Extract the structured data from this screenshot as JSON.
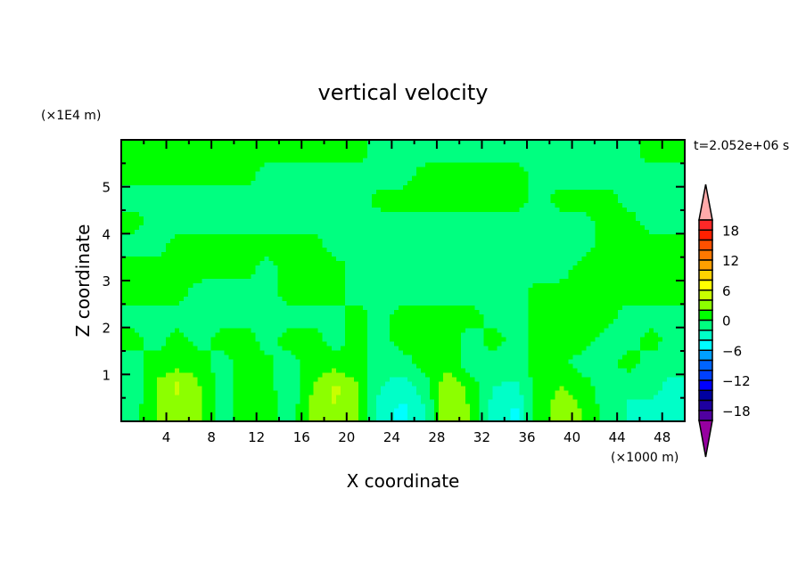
{
  "chart_data": {
    "type": "heatmap",
    "subtype": "filled-contour",
    "title": "vertical velocity",
    "xlabel": "X coordinate",
    "ylabel": "Z coordinate",
    "x_unit": "(×1000 m)",
    "y_unit": "(×1E4 m)",
    "time_label": "t=2.052e+06 s",
    "xlim": [
      0,
      50
    ],
    "ylim": [
      0,
      6
    ],
    "x_ticks": [
      4,
      8,
      12,
      16,
      20,
      24,
      28,
      32,
      36,
      40,
      44,
      48
    ],
    "x_minor_step": 2,
    "y_ticks": [
      1,
      2,
      3,
      4,
      5
    ],
    "y_minor_step": 0.5,
    "grid": false,
    "x": [
      1,
      3,
      5,
      7,
      9,
      11,
      13,
      15,
      17,
      19,
      21,
      23,
      25,
      27,
      29,
      31,
      33,
      35,
      37,
      39,
      41,
      43,
      45,
      47,
      49
    ],
    "z": [
      0.25,
      0.75,
      1.25,
      1.75,
      2.25,
      2.75,
      3.25,
      3.75,
      4.25,
      4.75,
      5.25,
      5.75
    ],
    "values": [
      [
        -1,
        2,
        3,
        2,
        -1,
        1,
        1,
        -1,
        3,
        4,
        2,
        -3,
        -4.5,
        -2,
        4,
        2,
        -3,
        -4.5,
        1,
        3,
        2,
        -1,
        -2,
        -3,
        -3
      ],
      [
        -2,
        2,
        4.5,
        2,
        -1,
        1,
        1,
        -2,
        2,
        4.5,
        2,
        -2,
        -3,
        -1,
        4,
        1,
        -2,
        -2.5,
        1,
        2,
        1,
        -1,
        -2,
        -1,
        -3
      ],
      [
        -1,
        1,
        1,
        1,
        -1,
        1,
        0.5,
        -1,
        1,
        1,
        0.5,
        -1,
        -1,
        1,
        1,
        -1,
        -1,
        -1,
        1,
        0.5,
        -1,
        -1,
        1,
        -1,
        -1
      ],
      [
        1,
        -1,
        1,
        -1,
        1,
        1,
        -1,
        1,
        1,
        -1,
        1,
        -1,
        1,
        1,
        1,
        -1,
        1,
        -1,
        1,
        1,
        1,
        -1,
        -1,
        1,
        -1
      ],
      [
        -1,
        -1,
        -1,
        -1,
        -1,
        -1,
        -1,
        -1,
        -1,
        -1,
        1,
        -1,
        1,
        1,
        1,
        1,
        -1,
        -1,
        1,
        1,
        1,
        1,
        -1,
        -1,
        -1
      ],
      [
        1,
        1,
        1,
        -1,
        -1,
        -1,
        -1,
        1,
        1,
        1,
        -1,
        -1,
        -1,
        -1,
        -1,
        -1,
        -1,
        -1,
        1,
        1,
        1,
        1,
        1,
        1,
        1
      ],
      [
        1,
        1,
        1,
        1,
        1,
        1,
        -1,
        1,
        1,
        1,
        -1,
        -1,
        -1,
        -1,
        -1,
        -1,
        -1,
        -1,
        -1,
        -1,
        1,
        1,
        1,
        1,
        1
      ],
      [
        -1,
        -1,
        1,
        1,
        1,
        1,
        1,
        1,
        1,
        -1,
        -1,
        -1,
        -1,
        -1,
        -1,
        -1,
        -1,
        -1,
        -1,
        -1,
        -1,
        1,
        1,
        1,
        1
      ],
      [
        1,
        -1,
        -1,
        -1,
        -1,
        -1,
        -1,
        -1,
        -1,
        -1,
        -1,
        -1,
        -1,
        -1,
        -1,
        -1,
        -1,
        -1,
        -1,
        -1,
        -1,
        1,
        1,
        -1,
        -1
      ],
      [
        -1,
        -1,
        -1,
        -1,
        -1,
        -1,
        -1,
        -1,
        -1,
        -1,
        -1,
        1,
        1,
        1,
        1,
        1,
        1,
        1,
        -1,
        1,
        1,
        1,
        -1,
        -1,
        -1
      ],
      [
        1,
        1,
        1,
        1,
        1,
        1,
        -1,
        -1,
        -1,
        -1,
        -1,
        -1,
        -1,
        1,
        1,
        1,
        1,
        1,
        -1,
        -1,
        -1,
        -1,
        -1,
        -1,
        -1
      ],
      [
        1,
        1,
        1,
        1,
        1,
        1,
        1,
        1,
        1,
        1,
        1,
        -1,
        -1,
        -1,
        -1,
        -1,
        -1,
        -1,
        -1,
        -1,
        -1,
        -1,
        -1,
        1,
        1
      ]
    ],
    "colorbar": {
      "levels_min": -20,
      "levels_max": 20,
      "level_step": 2,
      "tick_labels": [
        "18",
        "12",
        "6",
        "0",
        "−6",
        "−12",
        "−18"
      ],
      "tick_values": [
        18,
        12,
        6,
        0,
        -6,
        -12,
        -18
      ],
      "colors_high_to_low": [
        "#ff2828",
        "#ff2000",
        "#ff5000",
        "#ff7800",
        "#ffa000",
        "#ffd200",
        "#ffff00",
        "#c8ff00",
        "#8cff00",
        "#00ff00",
        "#00ff80",
        "#00ffc8",
        "#00ffff",
        "#00a0ff",
        "#0064ff",
        "#0040ff",
        "#0000ff",
        "#0000a0",
        "#1e00a0",
        "#5000a0"
      ],
      "over_color": "#ffaaaa",
      "under_color": "#9600a0"
    }
  }
}
